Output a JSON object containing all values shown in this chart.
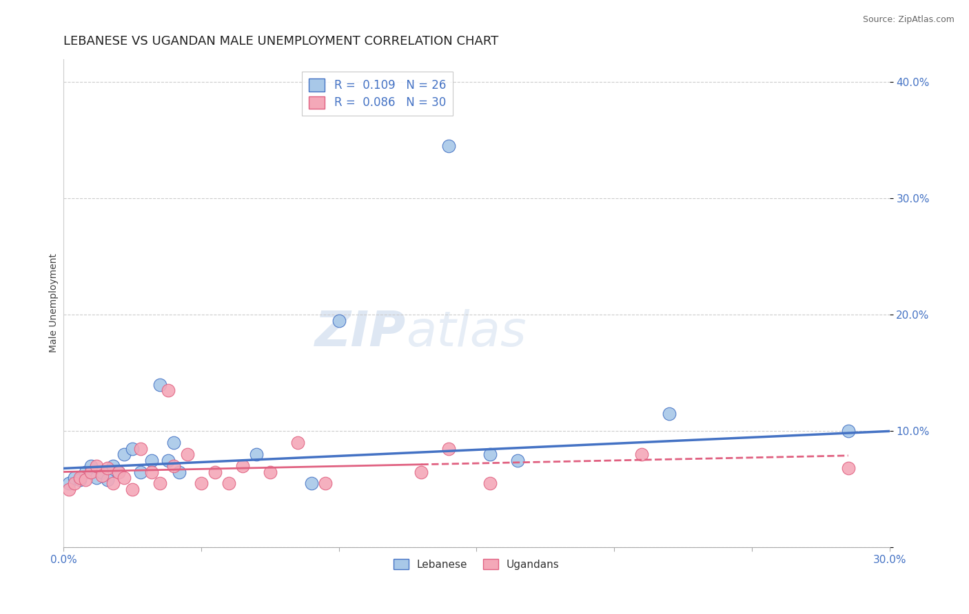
{
  "title": "LEBANESE VS UGANDAN MALE UNEMPLOYMENT CORRELATION CHART",
  "source": "Source: ZipAtlas.com",
  "xlabel": "",
  "ylabel": "Male Unemployment",
  "xlim": [
    0.0,
    0.3
  ],
  "ylim": [
    0.0,
    0.42
  ],
  "xticks": [
    0.0,
    0.05,
    0.1,
    0.15,
    0.2,
    0.25,
    0.3
  ],
  "xtick_labels": [
    "0.0%",
    "",
    "",
    "",
    "",
    "",
    "30.0%"
  ],
  "yticks": [
    0.0,
    0.1,
    0.2,
    0.3,
    0.4
  ],
  "ytick_labels": [
    "",
    "10.0%",
    "20.0%",
    "30.0%",
    "40.0%"
  ],
  "lebanese_R": 0.109,
  "lebanese_N": 26,
  "ugandan_R": 0.086,
  "ugandan_N": 30,
  "lebanese_color": "#a8c8e8",
  "ugandan_color": "#f4a8b8",
  "lebanese_line_color": "#4472c4",
  "ugandan_line_color": "#e06080",
  "background_color": "#ffffff",
  "lebanese_x": [
    0.002,
    0.004,
    0.006,
    0.008,
    0.01,
    0.012,
    0.014,
    0.016,
    0.018,
    0.02,
    0.022,
    0.025,
    0.028,
    0.032,
    0.035,
    0.038,
    0.04,
    0.042,
    0.07,
    0.09,
    0.1,
    0.14,
    0.155,
    0.165,
    0.22,
    0.285
  ],
  "lebanese_y": [
    0.055,
    0.06,
    0.058,
    0.065,
    0.07,
    0.06,
    0.065,
    0.058,
    0.07,
    0.065,
    0.08,
    0.085,
    0.065,
    0.075,
    0.14,
    0.075,
    0.09,
    0.065,
    0.08,
    0.055,
    0.195,
    0.345,
    0.08,
    0.075,
    0.115,
    0.1
  ],
  "ugandan_x": [
    0.002,
    0.004,
    0.006,
    0.008,
    0.01,
    0.012,
    0.014,
    0.016,
    0.018,
    0.02,
    0.022,
    0.025,
    0.028,
    0.032,
    0.035,
    0.038,
    0.04,
    0.045,
    0.05,
    0.055,
    0.06,
    0.065,
    0.075,
    0.085,
    0.095,
    0.13,
    0.14,
    0.155,
    0.21,
    0.285
  ],
  "ugandan_x_line_start": 0.0,
  "ugandan_x_line_end": 0.285,
  "lebanese_line_y_start": 0.068,
  "lebanese_line_y_end": 0.1,
  "ugandan_line_y_start": 0.065,
  "ugandan_line_y_end": 0.079,
  "ugandan_y": [
    0.05,
    0.055,
    0.06,
    0.058,
    0.065,
    0.07,
    0.062,
    0.068,
    0.055,
    0.065,
    0.06,
    0.05,
    0.085,
    0.065,
    0.055,
    0.135,
    0.07,
    0.08,
    0.055,
    0.065,
    0.055,
    0.07,
    0.065,
    0.09,
    0.055,
    0.065,
    0.085,
    0.055,
    0.08,
    0.068
  ],
  "watermark_line1": "ZIP",
  "watermark_line2": "atlas",
  "title_fontsize": 13,
  "axis_label_fontsize": 10,
  "tick_fontsize": 11,
  "legend_fontsize": 12
}
